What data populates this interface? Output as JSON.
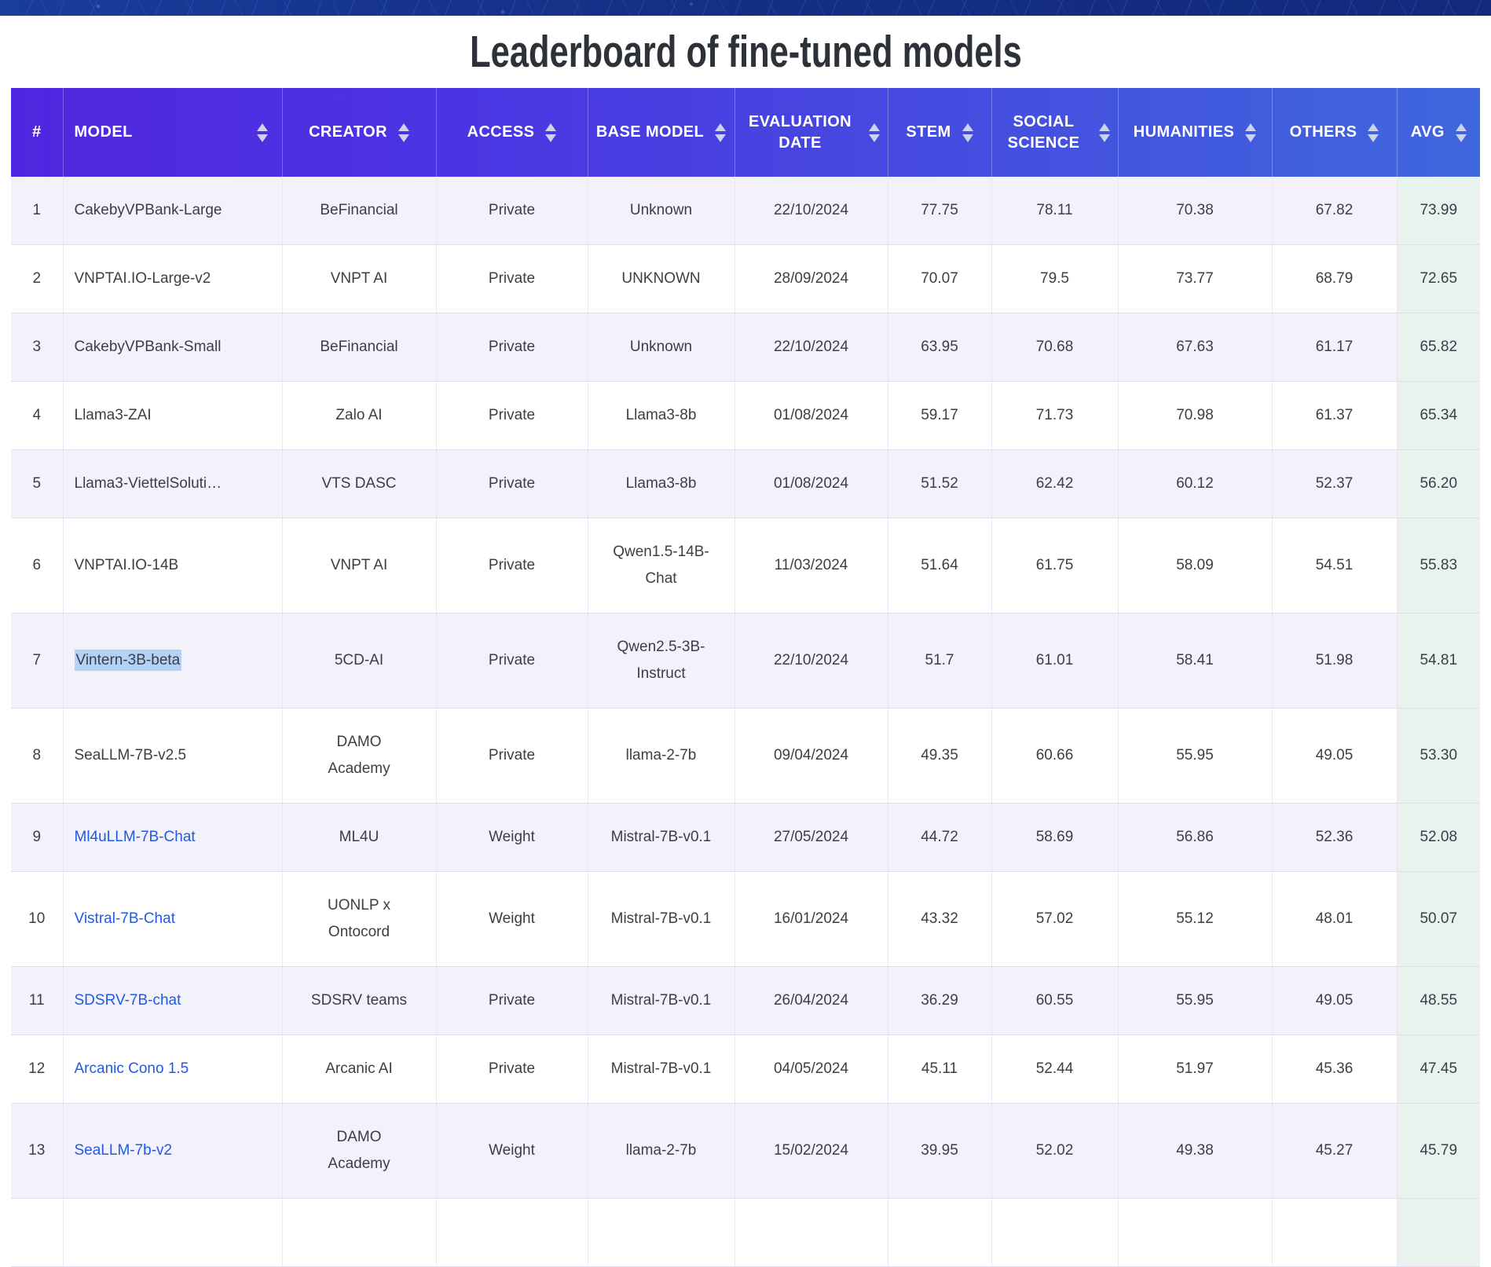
{
  "title": "Leaderboard of fine-tuned models",
  "colors": {
    "banner_navy": "#142f85",
    "header_gradient_start": "#5126e0",
    "header_gradient_end": "#3f67dd",
    "row_alt_background": "#f3f2fa",
    "avg_column_background": "#e8f3ef",
    "link_blue": "#2159e6",
    "selection_highlight": "#b4d2f8",
    "body_text": "#3a3f47",
    "title_text": "#2d3138"
  },
  "table": {
    "columns": [
      {
        "key": "rank",
        "label": "#",
        "sortable": false
      },
      {
        "key": "model",
        "label": "MODEL",
        "sortable": true
      },
      {
        "key": "creator",
        "label": "CREATOR",
        "sortable": true
      },
      {
        "key": "access",
        "label": "ACCESS",
        "sortable": true
      },
      {
        "key": "base_model",
        "label": "BASE MODEL",
        "sortable": true
      },
      {
        "key": "evaluation_date",
        "label": "EVALUATION DATE",
        "sortable": true
      },
      {
        "key": "stem",
        "label": "STEM",
        "sortable": true
      },
      {
        "key": "social_science",
        "label": "SOCIAL SCIENCE",
        "sortable": true
      },
      {
        "key": "humanities",
        "label": "HUMANITIES",
        "sortable": true
      },
      {
        "key": "others",
        "label": "OTHERS",
        "sortable": true
      },
      {
        "key": "avg",
        "label": "AVG",
        "sortable": true
      }
    ],
    "rows": [
      {
        "rank": "1",
        "model": "CakebyVPBank-Large",
        "is_link": false,
        "is_selected": false,
        "creator": "BeFinancial",
        "access": "Private",
        "base_model": "Unknown",
        "evaluation_date": "22/10/2024",
        "stem": "77.75",
        "social_science": "78.11",
        "humanities": "70.38",
        "others": "67.82",
        "avg": "73.99"
      },
      {
        "rank": "2",
        "model": "VNPTAI.IO-Large-v2",
        "is_link": false,
        "is_selected": false,
        "creator": "VNPT AI",
        "access": "Private",
        "base_model": "UNKNOWN",
        "evaluation_date": "28/09/2024",
        "stem": "70.07",
        "social_science": "79.5",
        "humanities": "73.77",
        "others": "68.79",
        "avg": "72.65"
      },
      {
        "rank": "3",
        "model": "CakebyVPBank-Small",
        "is_link": false,
        "is_selected": false,
        "creator": "BeFinancial",
        "access": "Private",
        "base_model": "Unknown",
        "evaluation_date": "22/10/2024",
        "stem": "63.95",
        "social_science": "70.68",
        "humanities": "67.63",
        "others": "61.17",
        "avg": "65.82"
      },
      {
        "rank": "4",
        "model": "Llama3-ZAI",
        "is_link": false,
        "is_selected": false,
        "creator": "Zalo AI",
        "access": "Private",
        "base_model": "Llama3-8b",
        "evaluation_date": "01/08/2024",
        "stem": "59.17",
        "social_science": "71.73",
        "humanities": "70.98",
        "others": "61.37",
        "avg": "65.34"
      },
      {
        "rank": "5",
        "model": "Llama3-ViettelSoluti…",
        "is_link": false,
        "is_selected": false,
        "creator": "VTS DASC",
        "access": "Private",
        "base_model": "Llama3-8b",
        "evaluation_date": "01/08/2024",
        "stem": "51.52",
        "social_science": "62.42",
        "humanities": "60.12",
        "others": "52.37",
        "avg": "56.20"
      },
      {
        "rank": "6",
        "model": "VNPTAI.IO-14B",
        "is_link": false,
        "is_selected": false,
        "creator": "VNPT AI",
        "access": "Private",
        "base_model": "Qwen1.5-14B-Chat",
        "evaluation_date": "11/03/2024",
        "stem": "51.64",
        "social_science": "61.75",
        "humanities": "58.09",
        "others": "54.51",
        "avg": "55.83"
      },
      {
        "rank": "7",
        "model": "Vintern-3B-beta",
        "is_link": false,
        "is_selected": true,
        "creator": "5CD-AI",
        "access": "Private",
        "base_model": "Qwen2.5-3B-Instruct",
        "evaluation_date": "22/10/2024",
        "stem": "51.7",
        "social_science": "61.01",
        "humanities": "58.41",
        "others": "51.98",
        "avg": "54.81"
      },
      {
        "rank": "8",
        "model": "SeaLLM-7B-v2.5",
        "is_link": false,
        "is_selected": false,
        "creator": "DAMO Academy",
        "access": "Private",
        "base_model": "llama-2-7b",
        "evaluation_date": "09/04/2024",
        "stem": "49.35",
        "social_science": "60.66",
        "humanities": "55.95",
        "others": "49.05",
        "avg": "53.30"
      },
      {
        "rank": "9",
        "model": "Ml4uLLM-7B-Chat",
        "is_link": true,
        "is_selected": false,
        "creator": "ML4U",
        "access": "Weight",
        "base_model": "Mistral-7B-v0.1",
        "evaluation_date": "27/05/2024",
        "stem": "44.72",
        "social_science": "58.69",
        "humanities": "56.86",
        "others": "52.36",
        "avg": "52.08"
      },
      {
        "rank": "10",
        "model": "Vistral-7B-Chat",
        "is_link": true,
        "is_selected": false,
        "creator": "UONLP x Ontocord",
        "access": "Weight",
        "base_model": "Mistral-7B-v0.1",
        "evaluation_date": "16/01/2024",
        "stem": "43.32",
        "social_science": "57.02",
        "humanities": "55.12",
        "others": "48.01",
        "avg": "50.07"
      },
      {
        "rank": "11",
        "model": "SDSRV-7B-chat",
        "is_link": true,
        "is_selected": false,
        "creator": "SDSRV teams",
        "access": "Private",
        "base_model": "Mistral-7B-v0.1",
        "evaluation_date": "26/04/2024",
        "stem": "36.29",
        "social_science": "60.55",
        "humanities": "55.95",
        "others": "49.05",
        "avg": "48.55"
      },
      {
        "rank": "12",
        "model": "Arcanic Cono 1.5",
        "is_link": true,
        "is_selected": false,
        "creator": "Arcanic AI",
        "access": "Private",
        "base_model": "Mistral-7B-v0.1",
        "evaluation_date": "04/05/2024",
        "stem": "45.11",
        "social_science": "52.44",
        "humanities": "51.97",
        "others": "45.36",
        "avg": "47.45"
      },
      {
        "rank": "13",
        "model": "SeaLLM-7b-v2",
        "is_link": true,
        "is_selected": false,
        "creator": "DAMO Academy",
        "access": "Weight",
        "base_model": "llama-2-7b",
        "evaluation_date": "15/02/2024",
        "stem": "39.95",
        "social_science": "52.02",
        "humanities": "49.38",
        "others": "45.27",
        "avg": "45.79"
      }
    ]
  }
}
